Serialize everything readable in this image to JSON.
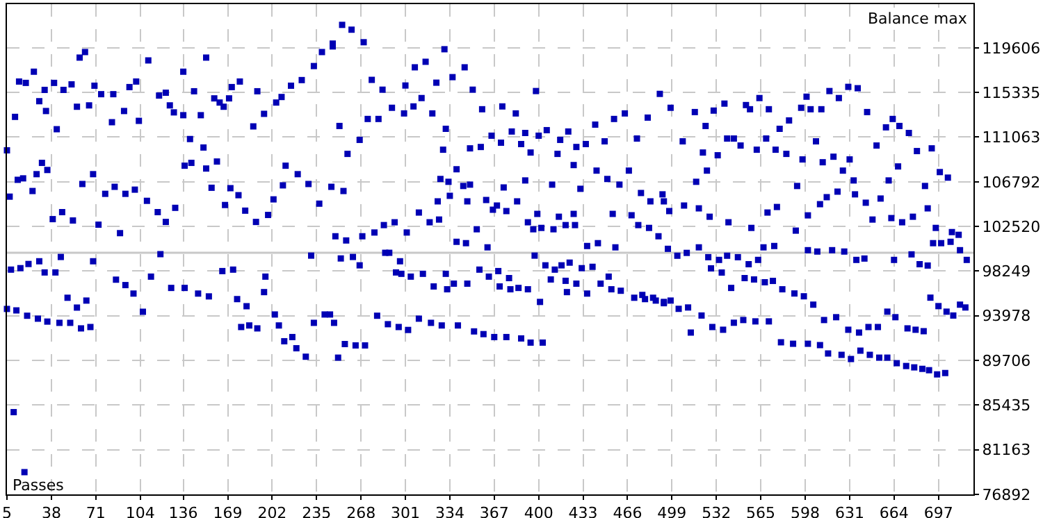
{
  "chart_data": {
    "type": "scatter",
    "xlabel": "Passes",
    "ylabel": "Balance max",
    "color": "#0000b4",
    "marker": "square",
    "grid": true,
    "xlim": [
      5,
      723
    ],
    "ylim": [
      76892,
      123780
    ],
    "xticks": [
      5,
      38,
      71,
      104,
      136,
      169,
      202,
      235,
      268,
      301,
      334,
      367,
      400,
      433,
      466,
      499,
      532,
      565,
      598,
      631,
      664,
      697
    ],
    "yticks": [
      76892,
      81163,
      85435,
      89706,
      93978,
      98249,
      102520,
      106792,
      111063,
      115335,
      119606
    ],
    "ref_lines": [
      {
        "axis": "y",
        "value": 100000,
        "color": "#c8c8c8"
      }
    ],
    "x": [
      10,
      18,
      11,
      14,
      19,
      25,
      29,
      33,
      34,
      40,
      42,
      47,
      53,
      57,
      59,
      63,
      66,
      70,
      75,
      83,
      84,
      92,
      96,
      101,
      103,
      110,
      118,
      123,
      126,
      129,
      136,
      136,
      141,
      144,
      149,
      151,
      153,
      159,
      163,
      166,
      170,
      172,
      178,
      188,
      191,
      196,
      205,
      209,
      216,
      224,
      233,
      239,
      247,
      254,
      5,
      7,
      13,
      17,
      31,
      35,
      27,
      24,
      39,
      46,
      54,
      61,
      69,
      73,
      78,
      85,
      89,
      93,
      100,
      109,
      117,
      123,
      130,
      137,
      142,
      153,
      157,
      161,
      167,
      171,
      177,
      182,
      190,
      199,
      203,
      210,
      212,
      221,
      229,
      237,
      246,
      255,
      5,
      12,
      20,
      28,
      35,
      44,
      52,
      60,
      67,
      8,
      15,
      21,
      29,
      33,
      41,
      45,
      50,
      57,
      64,
      69,
      86,
      93,
      99,
      106,
      112,
      119,
      127,
      137,
      147,
      155,
      165,
      173,
      176,
      179,
      183,
      185,
      191,
      196,
      197,
      204,
      207,
      211,
      217,
      220,
      227,
      231,
      233,
      241,
      245,
      251,
      253,
      248,
      256,
      264,
      271,
      280,
      288,
      296,
      303,
      311,
      320,
      328,
      340,
      352,
      359,
      367,
      376,
      387,
      394,
      403,
      262,
      267,
      286,
      289,
      297,
      294,
      298,
      305,
      314,
      322,
      331,
      332,
      337,
      347,
      356,
      363,
      370,
      371,
      378,
      379,
      385,
      392,
      397,
      401,
      405,
      409,
      412,
      417,
      420,
      423,
      421,
      428,
      432,
      436,
      440,
      446,
      452,
      454,
      461,
      471,
      477,
      479,
      485,
      487,
      493,
      498,
      261,
      270,
      247,
      252,
      258,
      267,
      273,
      276,
      281,
      284,
      291,
      300,
      301,
      307,
      308,
      313,
      316,
      321,
      324,
      330,
      331,
      329,
      336,
      339,
      345,
      349,
      351,
      357,
      358,
      365,
      373,
      372,
      380,
      383,
      387,
      390,
      394,
      398,
      400,
      406,
      414,
      416,
      422,
      426,
      428,
      435,
      442,
      449,
      456,
      464,
      473,
      481,
      490,
      498,
      327,
      333,
      344,
      349,
      325,
      334,
      347,
      361,
      369,
      374,
      384,
      390,
      399,
      410,
      415,
      426,
      431,
      443,
      451,
      455,
      460,
      467,
      476,
      483,
      493,
      249,
      257,
      269,
      278,
      285,
      293,
      302,
      311,
      319,
      326,
      339,
      346,
      354,
      362,
      366,
      376,
      392,
      396,
      402,
      411,
      420,
      427,
      436,
      444,
      457,
      469,
      474,
      482,
      489,
      497,
      507,
      516,
      517,
      522,
      524,
      525,
      530,
      533,
      538,
      540,
      545,
      550,
      554,
      557,
      562,
      564,
      569,
      571,
      576,
      579,
      584,
      586,
      592,
      595,
      596,
      599,
      602,
      606,
      610,
      611,
      616,
      619,
      623,
      626,
      630,
      631,
      634,
      637,
      644,
      651,
      658,
      660,
      663,
      668,
      667,
      675,
      681,
      687,
      692,
      698,
      704,
      492,
      508,
      519,
      527,
      541,
      558,
      570,
      577,
      591,
      600,
      609,
      614,
      622,
      635,
      643,
      648,
      654,
      662,
      670,
      678,
      689,
      695,
      707,
      712,
      580,
      589,
      600,
      609,
      615,
      625,
      632,
      639,
      646,
      653,
      659,
      666,
      673,
      679,
      685,
      690,
      696,
      702,
      493,
      504,
      511,
      513,
      521,
      529,
      537,
      545,
      552,
      561,
      571,
      612,
      621,
      630,
      638,
      645,
      652,
      659,
      665,
      674,
      680,
      686,
      691,
      697,
      703,
      708,
      713,
      717,
      528,
      536,
      543,
      553,
      560,
      568,
      574,
      581,
      590,
      597,
      604,
      496,
      503,
      510,
      519,
      526,
      534,
      540,
      548,
      556,
      563,
      567,
      575,
      600,
      607,
      618,
      627,
      636,
      642,
      664,
      677,
      683,
      689,
      693,
      699,
      706,
      713,
      718
    ],
    "values": [
      84760,
      79020,
      113000,
      116380,
      116250,
      117320,
      114500,
      115580,
      113560,
      116250,
      111820,
      115580,
      116110,
      113970,
      118670,
      119200,
      114100,
      115980,
      115170,
      112490,
      115170,
      113560,
      115850,
      116380,
      112620,
      118400,
      115040,
      115310,
      114100,
      113430,
      113160,
      117320,
      110880,
      115450,
      113160,
      110070,
      118670,
      114770,
      114370,
      113970,
      114770,
      115850,
      116380,
      112090,
      115450,
      113290,
      114370,
      114900,
      115980,
      116520,
      117860,
      119200,
      120010,
      121800,
      109800,
      105370,
      106980,
      107120,
      108600,
      107920,
      107520,
      105910,
      103220,
      103890,
      103090,
      106580,
      107520,
      102690,
      105640,
      106310,
      101880,
      105640,
      106040,
      104970,
      103890,
      102950,
      104300,
      108330,
      108600,
      108060,
      106220,
      108730,
      104570,
      106180,
      105510,
      104030,
      102950,
      103620,
      105110,
      106450,
      108330,
      107520,
      106580,
      104700,
      106310,
      105910,
      94630,
      94490,
      93980,
      93700,
      93420,
      93300,
      93300,
      92770,
      92900,
      98390,
      98530,
      98930,
      99190,
      98120,
      98120,
      99600,
      95700,
      94760,
      95430,
      99190,
      97430,
      96910,
      96100,
      94360,
      97720,
      99870,
      96640,
      96640,
      96100,
      95830,
      98250,
      98390,
      95570,
      92900,
      94890,
      93050,
      92770,
      96240,
      97720,
      94100,
      93050,
      91540,
      91940,
      90870,
      90060,
      99730,
      93300,
      94100,
      94100,
      89970,
      99460,
      93300,
      91270,
      91140,
      91140,
      93980,
      93170,
      92900,
      92620,
      93700,
      93300,
      93050,
      93050,
      92480,
      92220,
      91940,
      91940,
      91810,
      91410,
      91410,
      99600,
      98800,
      100000,
      100000,
      99190,
      98120,
      97990,
      97720,
      97990,
      96780,
      97990,
      96510,
      97050,
      97050,
      98390,
      97720,
      98250,
      96780,
      97580,
      96510,
      96640,
      96510,
      99730,
      95300,
      98800,
      97450,
      98390,
      98800,
      97320,
      99060,
      96240,
      97050,
      98530,
      96100,
      98660,
      97050,
      97720,
      96510,
      96370,
      95700,
      95970,
      95570,
      95700,
      95430,
      95300,
      95430,
      121340,
      120140,
      119740,
      112130,
      109460,
      110800,
      112800,
      116540,
      112800,
      115600,
      113870,
      113330,
      116000,
      114000,
      117740,
      114800,
      118270,
      113330,
      116270,
      119470,
      111860,
      109860,
      116800,
      107990,
      117740,
      109990,
      115600,
      110120,
      113730,
      111200,
      114000,
      110530,
      111600,
      113330,
      110400,
      111460,
      109590,
      115470,
      111200,
      111730,
      109460,
      110800,
      111600,
      108390,
      110120,
      110400,
      112260,
      110660,
      112800,
      113330,
      110930,
      112930,
      115200,
      113870,
      107060,
      106790,
      106390,
      106520,
      104920,
      105450,
      104920,
      105050,
      104520,
      106250,
      104920,
      106920,
      103720,
      106520,
      103450,
      103720,
      106120,
      107860,
      107060,
      103720,
      106520,
      107860,
      105720,
      104920,
      104920,
      101580,
      101180,
      101580,
      101940,
      102650,
      102920,
      101940,
      103850,
      102920,
      103180,
      101050,
      100920,
      102250,
      100520,
      104120,
      103990,
      102920,
      102250,
      102380,
      102250,
      102650,
      102650,
      100650,
      100920,
      100520,
      103590,
      102650,
      102380,
      101580,
      103990,
      110660,
      113460,
      106790,
      109590,
      112130,
      107860,
      113600,
      109330,
      114270,
      110930,
      110930,
      110260,
      114130,
      113730,
      109860,
      114800,
      110930,
      113730,
      109860,
      111860,
      109460,
      112660,
      106390,
      113870,
      108930,
      114930,
      113730,
      110660,
      113730,
      108660,
      115470,
      109190,
      114800,
      107860,
      115870,
      108930,
      106920,
      115740,
      113460,
      110260,
      112000,
      106920,
      112800,
      112130,
      108260,
      111460,
      109730,
      106390,
      109990,
      107720,
      107190,
      105590,
      104520,
      104250,
      103450,
      102920,
      102380,
      103850,
      104380,
      102120,
      103580,
      104650,
      105320,
      105850,
      105590,
      104790,
      103180,
      105190,
      103320,
      102920,
      103450,
      104250,
      102380,
      101980,
      101720,
      91440,
      91300,
      91300,
      91170,
      90370,
      90240,
      89840,
      90640,
      90240,
      89970,
      89970,
      89440,
      89170,
      89040,
      88900,
      88770,
      88370,
      88500,
      95180,
      94640,
      94770,
      92370,
      94000,
      92900,
      92640,
      93310,
      93570,
      93440,
      93440,
      93570,
      93840,
      92640,
      92370,
      92900,
      92900,
      94370,
      93840,
      92770,
      92640,
      92500,
      95710,
      94900,
      94370,
      94000,
      95040,
      94770,
      98510,
      98110,
      96640,
      97580,
      97450,
      97180,
      97310,
      96510,
      96110,
      95840,
      95040,
      100380,
      99720,
      99990,
      100520,
      99580,
      99320,
      99720,
      99580,
      98910,
      99320,
      100520,
      100650,
      100250,
      100120,
      100250,
      100120,
      99320,
      99450,
      99320,
      99850,
      98910,
      98780,
      100920,
      100920,
      101050,
      100250,
      99320
    ]
  }
}
